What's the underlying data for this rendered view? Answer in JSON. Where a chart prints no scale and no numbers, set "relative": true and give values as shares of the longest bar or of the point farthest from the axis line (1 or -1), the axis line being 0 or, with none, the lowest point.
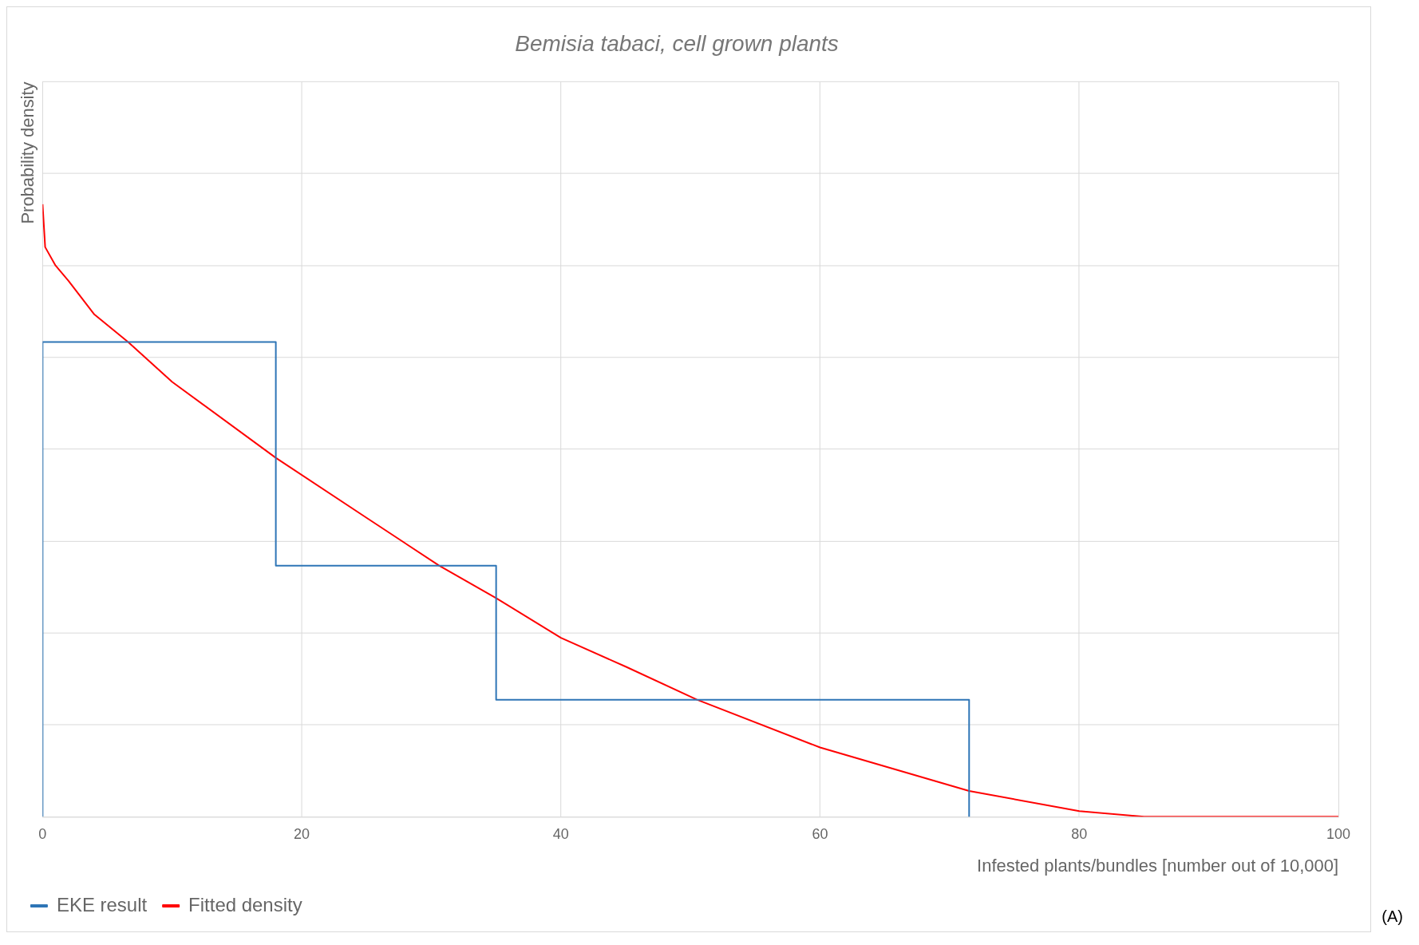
{
  "chart_data": {
    "type": "line",
    "title": "Bemisia tabaci, cell grown plants",
    "xlabel": "Infested plants/bundles [number out of 10,000]",
    "ylabel": "Probability density",
    "relative": true,
    "xlim": [
      0,
      100
    ],
    "xticks": [
      0,
      20,
      40,
      60,
      80,
      100
    ],
    "grid": true,
    "legend": "bottom left",
    "marker": "none",
    "annotations": [
      "(A)"
    ],
    "series": [
      {
        "name": "EKE result",
        "color": "#2e75b6",
        "x": [
          0,
          0,
          18,
          18,
          35,
          35,
          71.5,
          71.5
        ],
        "values": [
          0,
          0.775,
          0.775,
          0.41,
          0.41,
          0.191,
          0.191,
          0
        ]
      },
      {
        "name": "Fitted density",
        "color": "#ff0000",
        "x": [
          0,
          0.2,
          1,
          2,
          4,
          6.6,
          10,
          18,
          25,
          30.6,
          35,
          40,
          45,
          50.5,
          60,
          71.5,
          80,
          85,
          90,
          100
        ],
        "values": [
          1,
          0.93,
          0.9,
          0.875,
          0.82,
          0.775,
          0.71,
          0.586,
          0.488,
          0.41,
          0.357,
          0.292,
          0.245,
          0.191,
          0.113,
          0.042,
          0.009,
          0,
          0,
          0
        ]
      }
    ]
  }
}
